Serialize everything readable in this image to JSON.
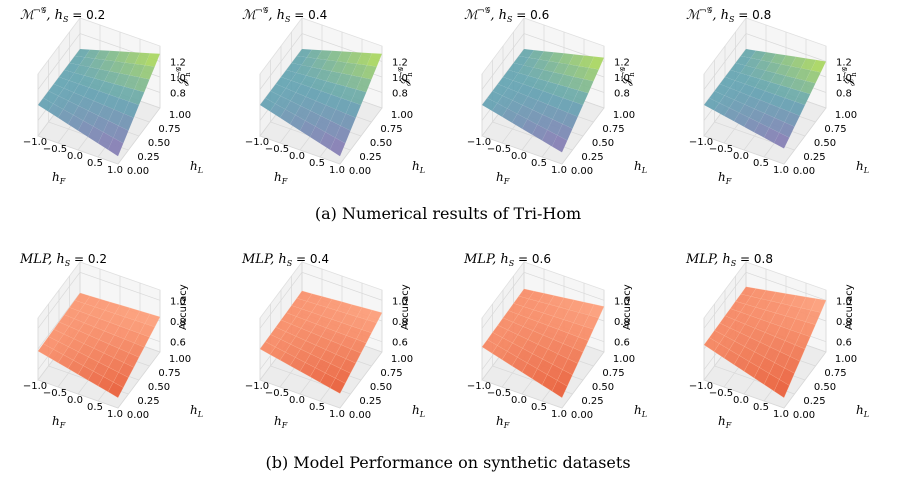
{
  "figure": {
    "caption_a": "(a) Numerical results of Tri-Hom",
    "caption_b": "(b) Model Performance on synthetic datasets"
  },
  "colors": {
    "theory_low": "#8a72b4",
    "theory_mid": "#5fa2b0",
    "theory_high": "#b6e04a",
    "mlp_low": "#e8532c",
    "mlp_high": "#ffa07a",
    "pane": "#f2f2f2",
    "grid": "#d9d9d9"
  },
  "chart_data": [
    {
      "type": "surface",
      "row": "a",
      "title_math": "ℳ",
      "title_sup": "¬𝒢",
      "title_rest": ",  h",
      "title_sub": "S",
      "title_value": " = 0.2",
      "xlabel": "h",
      "xlabel_sub": "F",
      "ylabel": "h",
      "ylabel_sub": "L",
      "zlabel": "𝒥",
      "zlabel_sup": "¬𝒢",
      "zlabel_sub": "h",
      "xticks": [
        "−1.0",
        "−0.5",
        "0.0",
        "0.5",
        "1.0"
      ],
      "yticks": [
        "0.00",
        "0.25",
        "0.50",
        "0.75",
        "1.00"
      ],
      "zticks": [
        "0.8",
        "1.0",
        "1.2"
      ],
      "zlim": [
        0.6,
        1.4
      ],
      "x": [
        -1.0,
        -0.5,
        0.0,
        0.5,
        1.0
      ],
      "y": [
        0.0,
        0.25,
        0.5,
        0.75,
        1.0
      ],
      "z_corners": {
        "xmin_ymin": 1.0,
        "xmax_ymin": 0.7,
        "xmin_ymax": 1.0,
        "xmax_ymax": 1.3
      }
    },
    {
      "type": "surface",
      "row": "a",
      "title_math": "ℳ",
      "title_sup": "¬𝒢",
      "title_rest": ",  h",
      "title_sub": "S",
      "title_value": " = 0.4",
      "xlabel": "h",
      "xlabel_sub": "F",
      "ylabel": "h",
      "ylabel_sub": "L",
      "zlabel": "𝒥",
      "zlabel_sup": "¬𝒢",
      "zlabel_sub": "h",
      "xticks": [
        "−1.0",
        "−0.5",
        "0.0",
        "0.5",
        "1.0"
      ],
      "yticks": [
        "0.00",
        "0.25",
        "0.50",
        "0.75",
        "1.00"
      ],
      "zticks": [
        "0.8",
        "1.0",
        "1.2"
      ],
      "zlim": [
        0.6,
        1.4
      ],
      "x": [
        -1.0,
        -0.5,
        0.0,
        0.5,
        1.0
      ],
      "y": [
        0.0,
        0.25,
        0.5,
        0.75,
        1.0
      ],
      "z_corners": {
        "xmin_ymin": 1.0,
        "xmax_ymin": 0.7,
        "xmin_ymax": 1.0,
        "xmax_ymax": 1.3
      }
    },
    {
      "type": "surface",
      "row": "a",
      "title_math": "ℳ",
      "title_sup": "¬𝒢",
      "title_rest": ",  h",
      "title_sub": "S",
      "title_value": " = 0.6",
      "xlabel": "h",
      "xlabel_sub": "F",
      "ylabel": "h",
      "ylabel_sub": "L",
      "zlabel": "𝒥",
      "zlabel_sup": "¬𝒢",
      "zlabel_sub": "h",
      "xticks": [
        "−1.0",
        "−0.5",
        "0.0",
        "0.5",
        "1.0"
      ],
      "yticks": [
        "0.00",
        "0.25",
        "0.50",
        "0.75",
        "1.00"
      ],
      "zticks": [
        "0.8",
        "1.0",
        "1.2"
      ],
      "zlim": [
        0.6,
        1.4
      ],
      "x": [
        -1.0,
        -0.5,
        0.0,
        0.5,
        1.0
      ],
      "y": [
        0.0,
        0.25,
        0.5,
        0.75,
        1.0
      ],
      "z_corners": {
        "xmin_ymin": 1.0,
        "xmax_ymin": 0.75,
        "xmin_ymax": 1.0,
        "xmax_ymax": 1.25
      }
    },
    {
      "type": "surface",
      "row": "a",
      "title_math": "ℳ",
      "title_sup": "¬𝒢",
      "title_rest": ",  h",
      "title_sub": "S",
      "title_value": " = 0.8",
      "xlabel": "h",
      "xlabel_sub": "F",
      "ylabel": "h",
      "ylabel_sub": "L",
      "zlabel": "𝒥",
      "zlabel_sup": "¬𝒢",
      "zlabel_sub": "h",
      "xticks": [
        "−1.0",
        "−0.5",
        "0.0",
        "0.5",
        "1.0"
      ],
      "yticks": [
        "0.00",
        "0.25",
        "0.50",
        "0.75",
        "1.00"
      ],
      "zticks": [
        "0.8",
        "1.0",
        "1.2"
      ],
      "zlim": [
        0.6,
        1.4
      ],
      "x": [
        -1.0,
        -0.5,
        0.0,
        0.5,
        1.0
      ],
      "y": [
        0.0,
        0.25,
        0.5,
        0.75,
        1.0
      ],
      "z_corners": {
        "xmin_ymin": 1.0,
        "xmax_ymin": 0.8,
        "xmin_ymax": 1.0,
        "xmax_ymax": 1.2
      }
    },
    {
      "type": "surface",
      "row": "b",
      "title_math": "MLP",
      "title_sup": "",
      "title_rest": ",  h",
      "title_sub": "S",
      "title_value": " = 0.2",
      "xlabel": "h",
      "xlabel_sub": "F",
      "ylabel": "h",
      "ylabel_sub": "L",
      "zlabel": "Accuracy",
      "zlabel_sup": "",
      "zlabel_sub": "",
      "xticks": [
        "−1.0",
        "−0.5",
        "0.0",
        "0.5",
        "1.0"
      ],
      "yticks": [
        "0.00",
        "0.25",
        "0.50",
        "0.75",
        "1.00"
      ],
      "zticks": [
        "0.6",
        "0.8",
        "1.0"
      ],
      "zlim": [
        0.5,
        1.1
      ],
      "x": [
        -1.0,
        -0.5,
        0.0,
        0.5,
        1.0
      ],
      "y": [
        0.0,
        0.25,
        0.5,
        0.75,
        1.0
      ],
      "z_corners": {
        "xmin_ymin": 0.78,
        "xmax_ymin": 0.6,
        "xmin_ymax": 0.8,
        "xmax_ymax": 0.84
      }
    },
    {
      "type": "surface",
      "row": "b",
      "title_math": "MLP",
      "title_sup": "",
      "title_rest": ",  h",
      "title_sub": "S",
      "title_value": " = 0.4",
      "xlabel": "h",
      "xlabel_sub": "F",
      "ylabel": "h",
      "ylabel_sub": "L",
      "zlabel": "Accuracy",
      "zlabel_sup": "",
      "zlabel_sub": "",
      "xticks": [
        "−1.0",
        "−0.5",
        "0.0",
        "0.5",
        "1.0"
      ],
      "yticks": [
        "0.00",
        "0.25",
        "0.50",
        "0.75",
        "1.00"
      ],
      "zticks": [
        "0.6",
        "0.8",
        "1.0"
      ],
      "zlim": [
        0.5,
        1.1
      ],
      "x": [
        -1.0,
        -0.5,
        0.0,
        0.5,
        1.0
      ],
      "y": [
        0.0,
        0.25,
        0.5,
        0.75,
        1.0
      ],
      "z_corners": {
        "xmin_ymin": 0.8,
        "xmax_ymin": 0.64,
        "xmin_ymax": 0.82,
        "xmax_ymax": 0.88
      }
    },
    {
      "type": "surface",
      "row": "b",
      "title_math": "MLP",
      "title_sup": "",
      "title_rest": ",  h",
      "title_sub": "S",
      "title_value": " = 0.6",
      "xlabel": "h",
      "xlabel_sub": "F",
      "ylabel": "h",
      "ylabel_sub": "L",
      "zlabel": "Accuracy",
      "zlabel_sup": "",
      "zlabel_sub": "",
      "xticks": [
        "−1.0",
        "−0.5",
        "0.0",
        "0.5",
        "1.0"
      ],
      "yticks": [
        "0.00",
        "0.25",
        "0.50",
        "0.75",
        "1.00"
      ],
      "zticks": [
        "0.6",
        "0.8",
        "1.0"
      ],
      "zlim": [
        0.5,
        1.1
      ],
      "x": [
        -1.0,
        -0.5,
        0.0,
        0.5,
        1.0
      ],
      "y": [
        0.0,
        0.25,
        0.5,
        0.75,
        1.0
      ],
      "z_corners": {
        "xmin_ymin": 0.82,
        "xmax_ymin": 0.6,
        "xmin_ymax": 0.84,
        "xmax_ymax": 0.94
      }
    },
    {
      "type": "surface",
      "row": "b",
      "title_math": "MLP",
      "title_sup": "",
      "title_rest": ",  h",
      "title_sub": "S",
      "title_value": " = 0.8",
      "xlabel": "h",
      "xlabel_sub": "F",
      "ylabel": "h",
      "ylabel_sub": "L",
      "zlabel": "Accuracy",
      "zlabel_sup": "",
      "zlabel_sub": "",
      "xticks": [
        "−1.0",
        "−0.5",
        "0.0",
        "0.5",
        "1.0"
      ],
      "yticks": [
        "0.00",
        "0.25",
        "0.50",
        "0.75",
        "1.00"
      ],
      "zticks": [
        "0.6",
        "0.8",
        "1.0"
      ],
      "zlim": [
        0.5,
        1.1
      ],
      "x": [
        -1.0,
        -0.5,
        0.0,
        0.5,
        1.0
      ],
      "y": [
        0.0,
        0.25,
        0.5,
        0.75,
        1.0
      ],
      "z_corners": {
        "xmin_ymin": 0.84,
        "xmax_ymin": 0.6,
        "xmin_ymax": 0.86,
        "xmax_ymax": 1.0
      }
    }
  ]
}
